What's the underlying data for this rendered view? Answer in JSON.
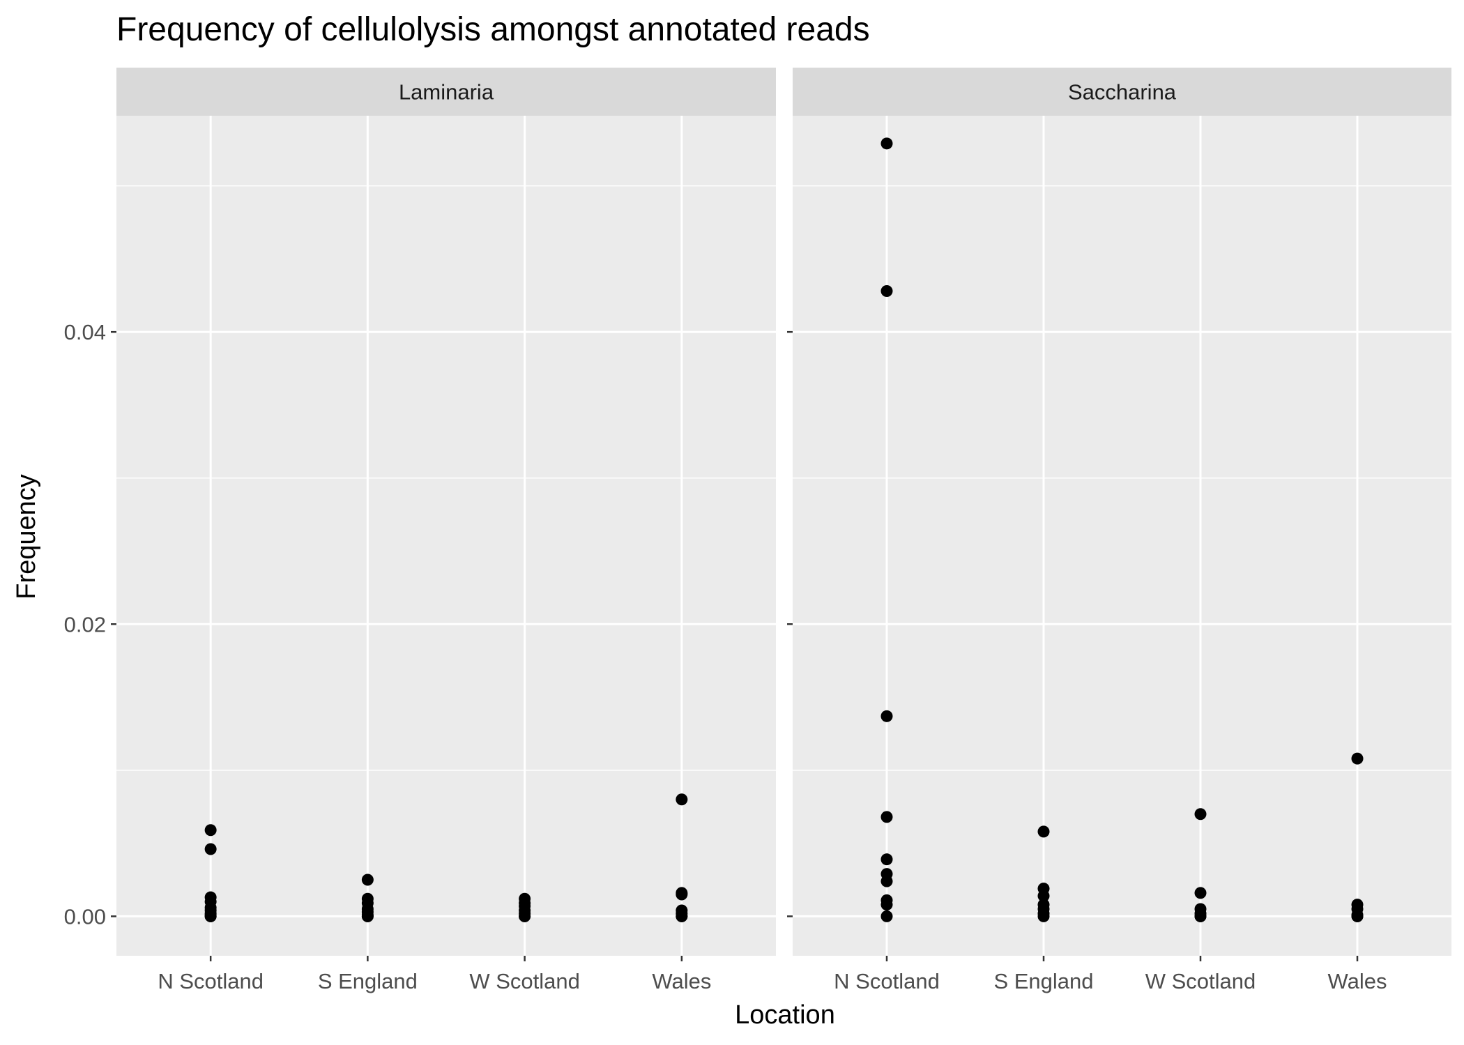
{
  "chart_data": {
    "type": "scatter",
    "title": "Frequency of cellulolysis amongst annotated reads",
    "xlabel": "Location",
    "ylabel": "Frequency",
    "ylim": [
      -0.0027,
      0.0548
    ],
    "yticks": [
      0.0,
      0.02,
      0.04
    ],
    "ytick_labels": [
      "0.00",
      "0.02",
      "0.04"
    ],
    "categories": [
      "N Scotland",
      "S England",
      "W Scotland",
      "Wales"
    ],
    "grid": true,
    "colors": {
      "panel_bg": "#EBEBEB",
      "strip_bg": "#D9D9D9",
      "grid": "#FFFFFF",
      "point": "#000000"
    },
    "facets": [
      {
        "label": "Laminaria",
        "points": [
          {
            "x": "N Scotland",
            "y": [
              0.0059,
              0.0046,
              0.0013,
              0.001,
              0.0006,
              0.0004,
              0.0002,
              0.0001,
              0.0,
              0.0
            ]
          },
          {
            "x": "S England",
            "y": [
              0.0025,
              0.0012,
              0.0009,
              0.0005,
              0.0003,
              0.0001,
              0.0,
              0.0
            ]
          },
          {
            "x": "W Scotland",
            "y": [
              0.0012,
              0.0009,
              0.0007,
              0.0004,
              0.0002,
              0.0,
              0.0
            ]
          },
          {
            "x": "Wales",
            "y": [
              0.008,
              0.0016,
              0.0015,
              0.0004,
              0.0002,
              0.0,
              0.0
            ]
          }
        ]
      },
      {
        "label": "Saccharina",
        "points": [
          {
            "x": "N Scotland",
            "y": [
              0.0529,
              0.0428,
              0.0137,
              0.0068,
              0.0039,
              0.0029,
              0.0024,
              0.0011,
              0.0008,
              0.0
            ]
          },
          {
            "x": "S England",
            "y": [
              0.0058,
              0.0019,
              0.0014,
              0.0008,
              0.0005,
              0.0002,
              0.0
            ]
          },
          {
            "x": "W Scotland",
            "y": [
              0.007,
              0.0016,
              0.0005,
              0.0002,
              0.0,
              0.0
            ]
          },
          {
            "x": "Wales",
            "y": [
              0.0108,
              0.0008,
              0.0005,
              0.0001,
              0.0,
              0.0
            ]
          }
        ]
      }
    ]
  }
}
